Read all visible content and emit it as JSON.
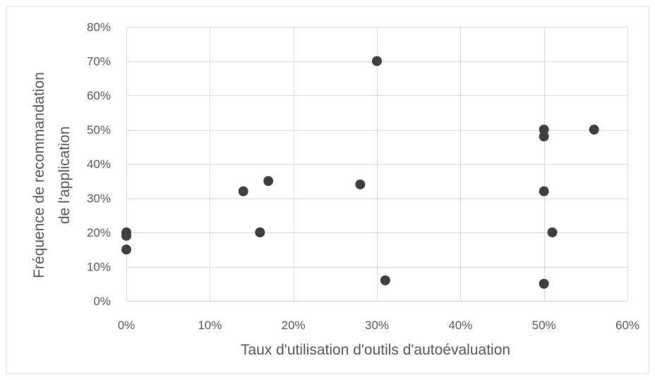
{
  "chart_data": {
    "type": "scatter",
    "title": "",
    "xlabel": "Taux d'utilisation d'outils d'autoévaluation",
    "ylabel_lines": [
      "Fréquence de recommandation",
      "de l'application"
    ],
    "xlim": [
      0,
      0.6
    ],
    "ylim": [
      0,
      0.8
    ],
    "x_ticks": [
      0,
      0.1,
      0.2,
      0.3,
      0.4,
      0.5,
      0.6
    ],
    "y_ticks": [
      0,
      0.1,
      0.2,
      0.3,
      0.4,
      0.5,
      0.6,
      0.7,
      0.8
    ],
    "x_tick_labels": [
      "0%",
      "10%",
      "20%",
      "30%",
      "40%",
      "50%",
      "60%"
    ],
    "y_tick_labels": [
      "0%",
      "10%",
      "20%",
      "30%",
      "40%",
      "50%",
      "60%",
      "70%",
      "80%"
    ],
    "grid": true,
    "legend": "none",
    "marker_color": "#404040",
    "points": [
      {
        "x": 0.0,
        "y": 0.2
      },
      {
        "x": 0.0,
        "y": 0.19
      },
      {
        "x": 0.0,
        "y": 0.15
      },
      {
        "x": 0.14,
        "y": 0.32
      },
      {
        "x": 0.16,
        "y": 0.2
      },
      {
        "x": 0.17,
        "y": 0.35
      },
      {
        "x": 0.28,
        "y": 0.34
      },
      {
        "x": 0.3,
        "y": 0.7
      },
      {
        "x": 0.31,
        "y": 0.06
      },
      {
        "x": 0.5,
        "y": 0.5
      },
      {
        "x": 0.5,
        "y": 0.48
      },
      {
        "x": 0.5,
        "y": 0.32
      },
      {
        "x": 0.5,
        "y": 0.05
      },
      {
        "x": 0.51,
        "y": 0.2
      },
      {
        "x": 0.56,
        "y": 0.5
      }
    ]
  }
}
